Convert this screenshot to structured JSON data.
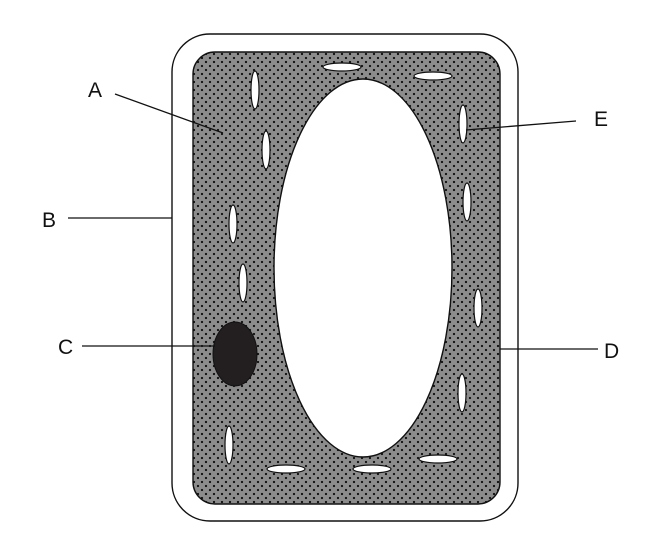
{
  "labels": {
    "a": "A",
    "b": "B",
    "c": "C",
    "d": "D",
    "e": "E"
  },
  "colors": {
    "background": "#ffffff",
    "outline": "#111111",
    "cytoplasm": "#8c8c8c",
    "granules": "#111111",
    "nucleus": "#231f20",
    "vacuole": "#ffffff",
    "organelles": "#ffffff"
  }
}
